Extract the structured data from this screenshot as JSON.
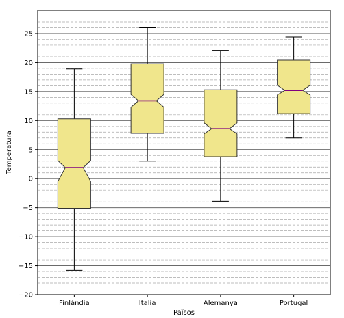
{
  "chart_data": {
    "type": "boxplot",
    "title": "",
    "xlabel": "Països",
    "ylabel": "Temperatura",
    "ylim": [
      -20,
      29
    ],
    "yticks": [
      -20,
      -15,
      -10,
      -5,
      0,
      5,
      10,
      15,
      20,
      25
    ],
    "minor_grid_step": 1,
    "grid": true,
    "notched": true,
    "categories": [
      "Finlàndia",
      "Italia",
      "Alemanya",
      "Portugal"
    ],
    "boxes": [
      {
        "name": "Finlàndia",
        "whisker_low": -15.8,
        "q1": -5.1,
        "median": 1.9,
        "q3": 10.3,
        "whisker_high": 18.9,
        "notch_low": -0.5,
        "notch_high": 3.1
      },
      {
        "name": "Italia",
        "whisker_low": 3.0,
        "q1": 7.8,
        "median": 13.4,
        "q3": 19.8,
        "whisker_high": 26.0,
        "notch_low": 12.3,
        "notch_high": 14.5
      },
      {
        "name": "Alemanya",
        "whisker_low": -3.9,
        "q1": 3.8,
        "median": 8.6,
        "q3": 15.3,
        "whisker_high": 22.1,
        "notch_low": 7.7,
        "notch_high": 9.6
      },
      {
        "name": "Portugal",
        "whisker_low": 7.0,
        "q1": 11.2,
        "median": 15.2,
        "q3": 20.4,
        "whisker_high": 24.4,
        "notch_low": 14.4,
        "notch_high": 16.1
      }
    ],
    "colors": {
      "box_fill": "#f0e68c",
      "box_edge": "#333333",
      "median": "#800080",
      "major_grid": "#555555",
      "minor_grid": "#a8a8a8"
    }
  }
}
